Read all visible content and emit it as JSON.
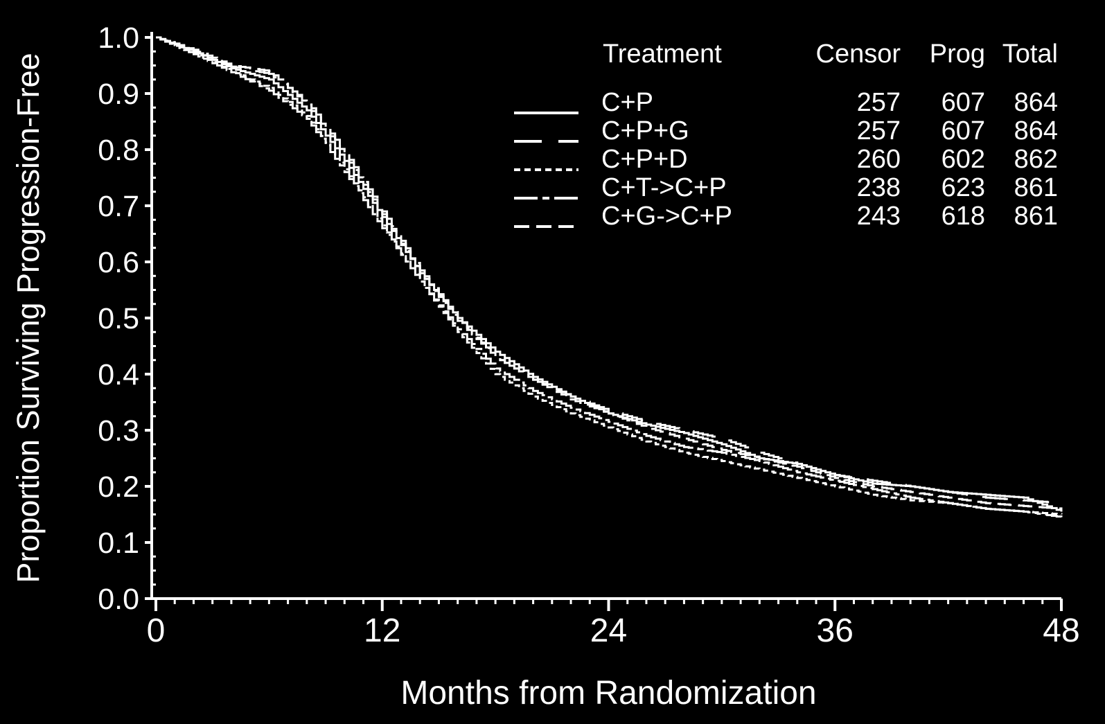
{
  "colors": {
    "background": "#000000",
    "foreground": "#ffffff"
  },
  "chart_data": {
    "type": "line",
    "subtype": "kaplan-meier step curves",
    "title": "",
    "xlabel": "Months from Randomization",
    "ylabel": "Proportion Surviving Progression-Free",
    "xlim": [
      0,
      48
    ],
    "ylim": [
      0.0,
      1.0
    ],
    "x_ticks": [
      "0",
      "12",
      "24",
      "36",
      "48"
    ],
    "y_ticks": [
      "0.0",
      "0.1",
      "0.2",
      "0.3",
      "0.4",
      "0.5",
      "0.6",
      "0.7",
      "0.8",
      "0.9",
      "1.0"
    ],
    "grid": false,
    "legend": {
      "placement": "top-right",
      "headers": {
        "treatment": "Treatment",
        "censor": "Censor",
        "prog": "Prog",
        "total": "Total"
      },
      "rows": [
        {
          "name": "C+P",
          "censor": "257",
          "prog": "607",
          "total": "864",
          "dash": "solid"
        },
        {
          "name": "C+P+G",
          "censor": "257",
          "prog": "607",
          "total": "864",
          "dash": "long-dash-gap"
        },
        {
          "name": "C+P+D",
          "censor": "260",
          "prog": "602",
          "total": "862",
          "dash": "short-dash"
        },
        {
          "name": "C+T->C+P",
          "censor": "238",
          "prog": "623",
          "total": "861",
          "dash": "dash-dot"
        },
        {
          "name": "C+G->C+P",
          "censor": "243",
          "prog": "618",
          "total": "861",
          "dash": "medium-dash"
        }
      ]
    },
    "series": [
      {
        "name": "C+P",
        "dash": "solid",
        "x": [
          0,
          2,
          4,
          6,
          8,
          10,
          12,
          14,
          16,
          18,
          20,
          22,
          24,
          26,
          28,
          30,
          32,
          34,
          36,
          38,
          40,
          42,
          44,
          46,
          48
        ],
        "y": [
          1.0,
          0.975,
          0.945,
          0.925,
          0.87,
          0.78,
          0.68,
          0.58,
          0.5,
          0.44,
          0.395,
          0.36,
          0.33,
          0.31,
          0.295,
          0.275,
          0.25,
          0.24,
          0.22,
          0.205,
          0.2,
          0.19,
          0.185,
          0.18,
          0.155
        ]
      },
      {
        "name": "C+P+G",
        "dash": "long-dash-gap",
        "x": [
          0,
          2,
          4,
          6,
          8,
          10,
          12,
          14,
          16,
          18,
          20,
          22,
          24,
          26,
          28,
          30,
          32,
          34,
          36,
          38,
          40,
          42,
          44,
          46,
          48
        ],
        "y": [
          1.0,
          0.975,
          0.948,
          0.935,
          0.885,
          0.795,
          0.69,
          0.585,
          0.5,
          0.43,
          0.39,
          0.36,
          0.335,
          0.315,
          0.3,
          0.285,
          0.26,
          0.24,
          0.22,
          0.21,
          0.2,
          0.19,
          0.18,
          0.175,
          0.17
        ]
      },
      {
        "name": "C+P+D",
        "dash": "short-dash",
        "x": [
          0,
          2,
          4,
          6,
          8,
          10,
          12,
          14,
          16,
          18,
          20,
          22,
          24,
          26,
          28,
          30,
          32,
          34,
          36,
          38,
          40,
          42,
          44,
          46,
          48
        ],
        "y": [
          1.0,
          0.972,
          0.94,
          0.91,
          0.86,
          0.765,
          0.665,
          0.565,
          0.475,
          0.4,
          0.36,
          0.33,
          0.305,
          0.28,
          0.26,
          0.245,
          0.23,
          0.215,
          0.2,
          0.185,
          0.175,
          0.17,
          0.16,
          0.155,
          0.15
        ]
      },
      {
        "name": "C+T->C+P",
        "dash": "dash-dot",
        "x": [
          0,
          2,
          4,
          6,
          8,
          10,
          12,
          14,
          16,
          18,
          20,
          22,
          24,
          26,
          28,
          30,
          32,
          34,
          36,
          38,
          40,
          42,
          44,
          46,
          48
        ],
        "y": [
          1.0,
          0.97,
          0.938,
          0.905,
          0.855,
          0.76,
          0.66,
          0.565,
          0.48,
          0.41,
          0.37,
          0.34,
          0.315,
          0.29,
          0.27,
          0.26,
          0.245,
          0.225,
          0.21,
          0.195,
          0.18,
          0.17,
          0.16,
          0.155,
          0.145
        ]
      },
      {
        "name": "C+G->C+P",
        "dash": "medium-dash",
        "x": [
          0,
          2,
          4,
          6,
          8,
          10,
          12,
          14,
          16,
          18,
          20,
          22,
          24,
          26,
          28,
          30,
          32,
          34,
          36,
          38,
          40,
          42,
          44,
          46,
          48
        ],
        "y": [
          1.0,
          0.978,
          0.95,
          0.94,
          0.88,
          0.79,
          0.685,
          0.58,
          0.495,
          0.43,
          0.39,
          0.355,
          0.33,
          0.305,
          0.285,
          0.265,
          0.25,
          0.235,
          0.215,
          0.2,
          0.19,
          0.18,
          0.17,
          0.165,
          0.16
        ]
      }
    ]
  }
}
